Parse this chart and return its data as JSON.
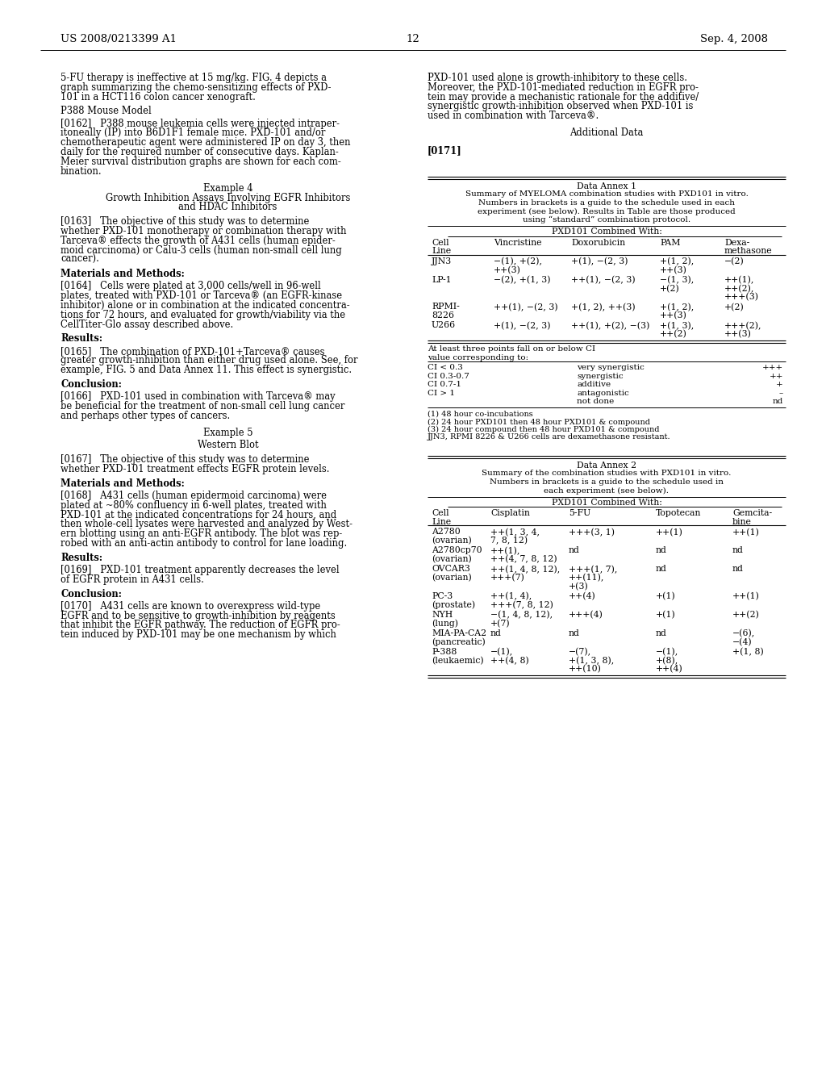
{
  "page_number": "12",
  "header_left": "US 2008/0213399 A1",
  "header_right": "Sep. 4, 2008",
  "bg_color": "#ffffff"
}
